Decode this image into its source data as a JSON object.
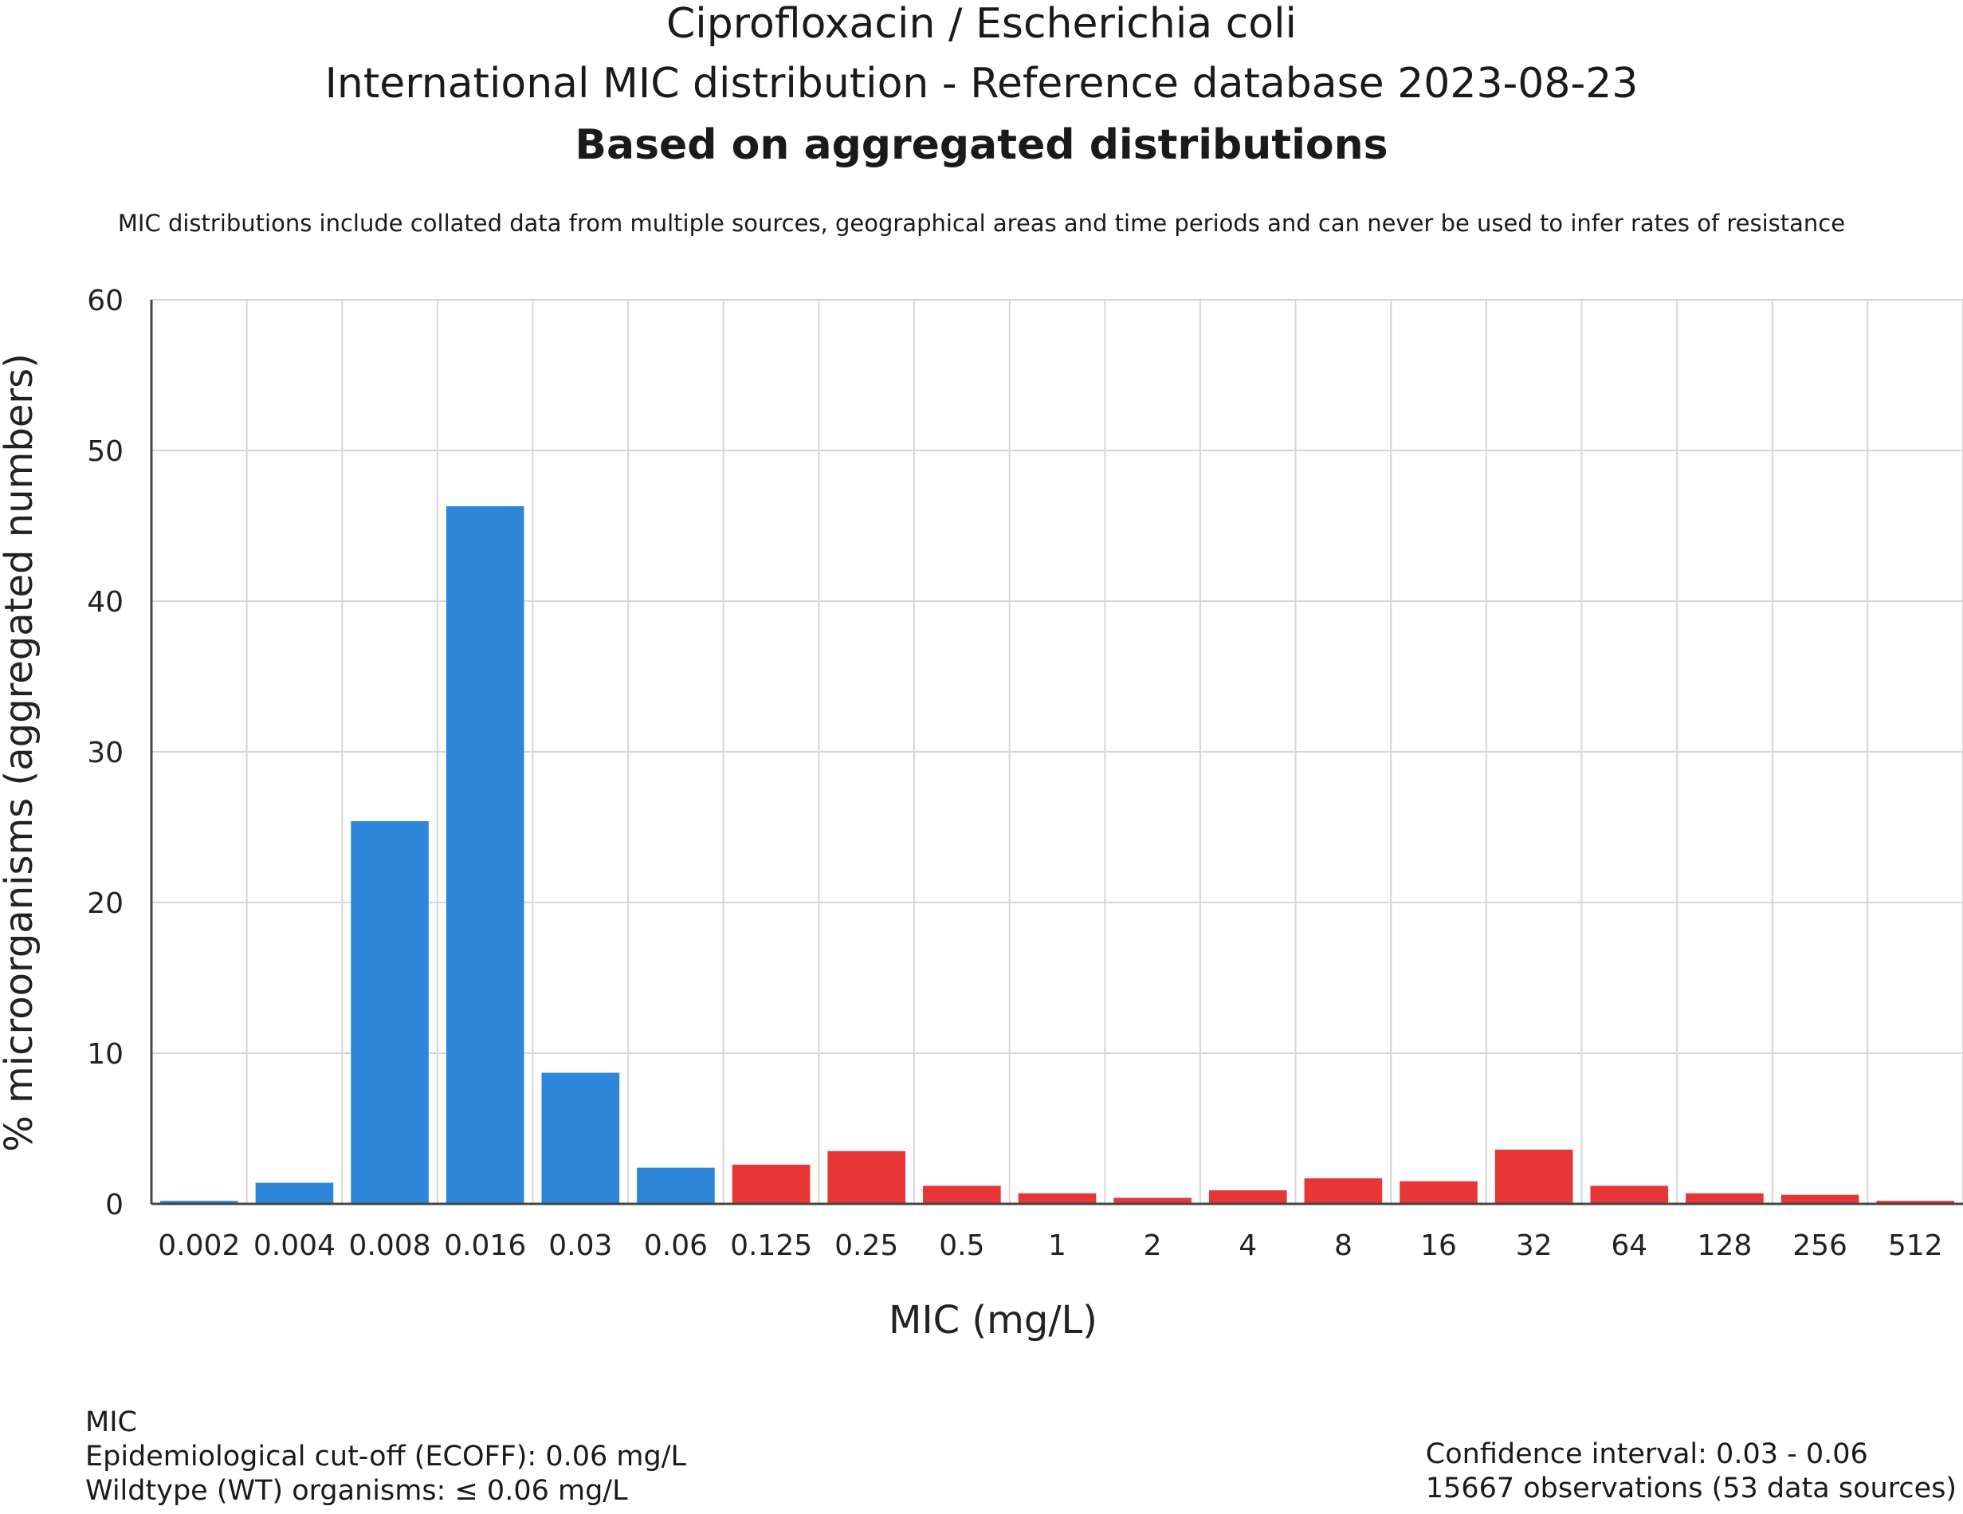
{
  "header": {
    "title_line1": "Ciprofloxacin / Escherichia coli",
    "title_line2": "International MIC distribution - Reference database 2023-08-23",
    "title_line3": "Based on aggregated distributions",
    "disclaimer": "MIC distributions include collated data from multiple sources, geographical areas and time periods and can never be used to infer rates of resistance"
  },
  "chart_data": {
    "type": "bar",
    "xlabel": "MIC (mg/L)",
    "ylabel": "% microorganisms (aggregated numbers)",
    "ylim": [
      0,
      60
    ],
    "yticks": [
      0,
      10,
      20,
      30,
      40,
      50,
      60
    ],
    "grid": true,
    "categories": [
      "0.002",
      "0.004",
      "0.008",
      "0.016",
      "0.03",
      "0.06",
      "0.125",
      "0.25",
      "0.5",
      "1",
      "2",
      "4",
      "8",
      "16",
      "32",
      "64",
      "128",
      "256",
      "512"
    ],
    "values": [
      0.2,
      1.4,
      25.4,
      46.3,
      8.7,
      2.4,
      2.6,
      3.5,
      1.2,
      0.7,
      0.4,
      0.9,
      1.7,
      1.5,
      3.6,
      1.2,
      0.7,
      0.6,
      0.2
    ],
    "wildtype_cutoff": "0.06",
    "colors": {
      "wildtype": "#2e86d9",
      "non_wildtype": "#e83536",
      "grid": "#d6d6d6",
      "axis": "#444444"
    }
  },
  "footer": {
    "left_line1": "MIC",
    "left_line2": "Epidemiological cut-off (ECOFF): 0.06 mg/L",
    "left_line3": "Wildtype (WT) organisms: ≤ 0.06 mg/L",
    "right_line1": "Confidence interval: 0.03 - 0.06",
    "right_line2": "15667 observations (53 data sources)"
  }
}
